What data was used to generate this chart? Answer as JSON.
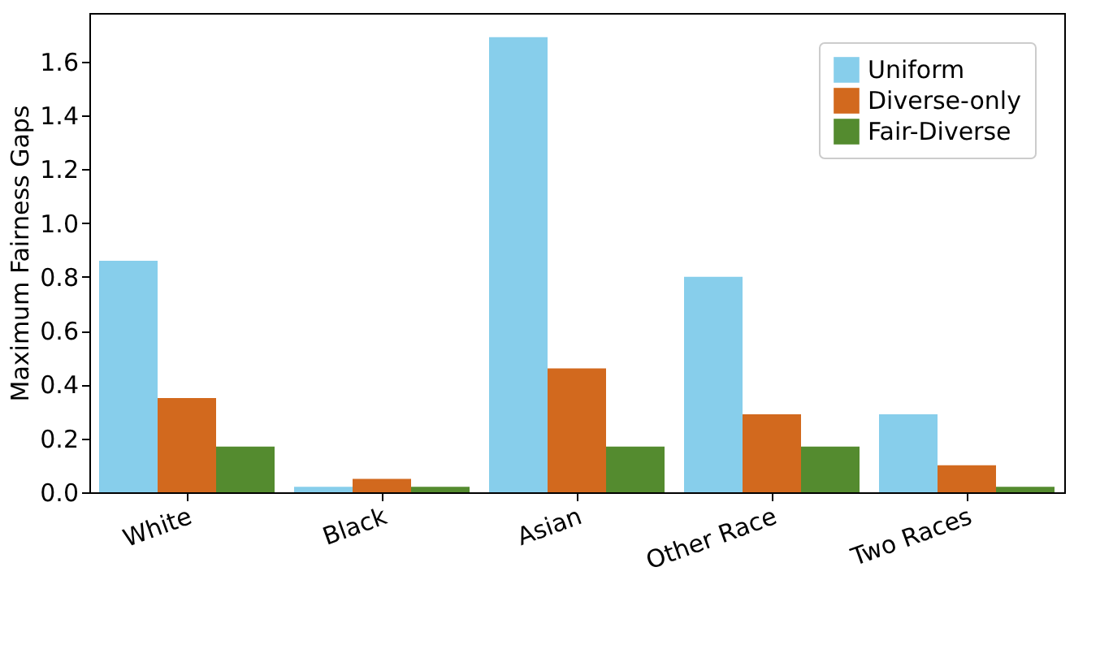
{
  "chart_data": {
    "type": "bar",
    "ylabel": "Maximum Fairness Gaps",
    "categories": [
      "White",
      "Black",
      "Asian",
      "Other Race",
      "Two Races"
    ],
    "series": [
      {
        "name": "Uniform",
        "color": "#87ceeb",
        "values": [
          0.86,
          0.02,
          1.69,
          0.8,
          0.29
        ]
      },
      {
        "name": "Diverse-only",
        "color": "#d2691e",
        "values": [
          0.35,
          0.05,
          0.46,
          0.29,
          0.1
        ]
      },
      {
        "name": "Fair-Diverse",
        "color": "#548b2f",
        "values": [
          0.17,
          0.02,
          0.17,
          0.17,
          0.02
        ]
      }
    ],
    "ylim": [
      0,
      1.78
    ],
    "yticks": [
      {
        "value": 0,
        "label": "0.0"
      },
      0.2,
      0.4,
      0.6,
      0.8,
      {
        "value": 1,
        "label": "1.0"
      },
      1.2,
      1.4,
      1.6
    ],
    "grid": false,
    "legend": "top right"
  }
}
